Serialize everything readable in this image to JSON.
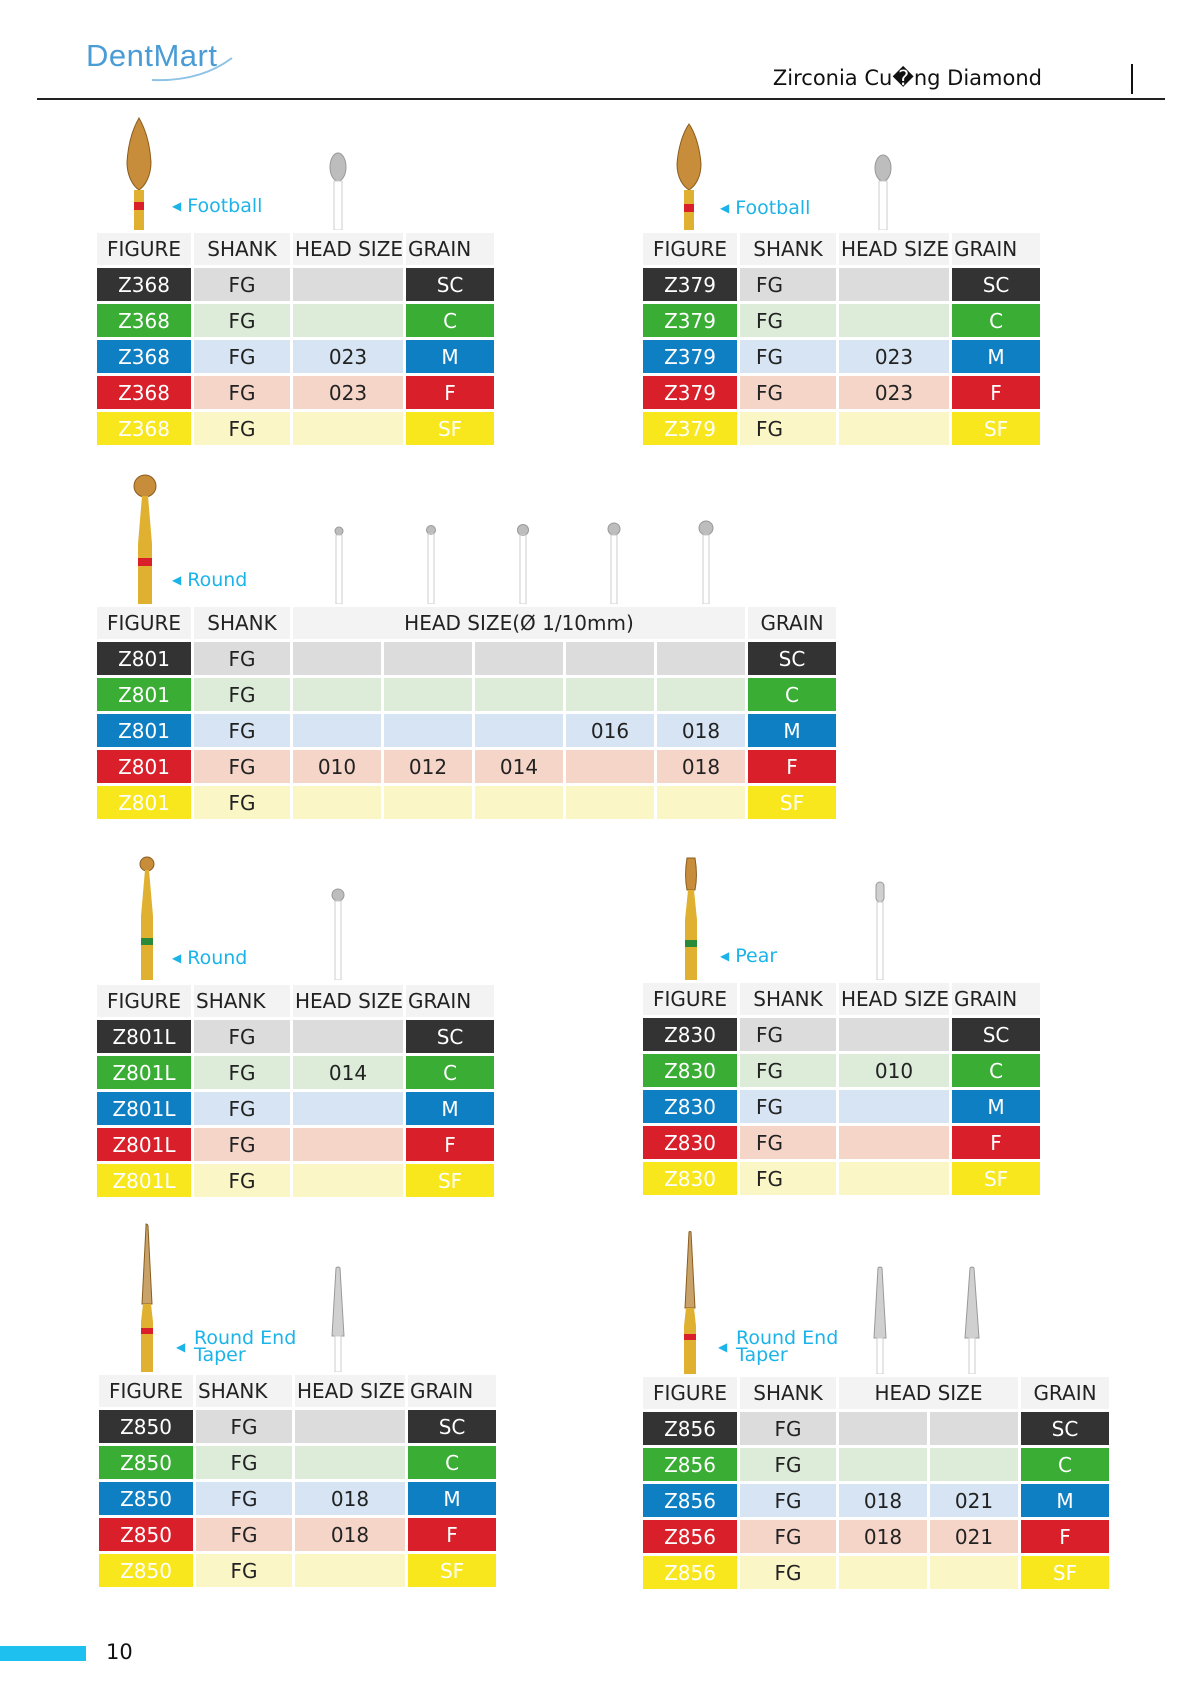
{
  "header": {
    "logo": "DentMart",
    "title": "Zirconia Cu�ng Diamond"
  },
  "footer": {
    "page_number": "10"
  },
  "grain_colors": {
    "SC": "#333333",
    "C": "#3aad35",
    "M": "#0f7fc4",
    "F": "#d81f2a",
    "SF": "#f8e71c"
  },
  "sections": [
    {
      "shape": "Football",
      "head": {
        "figure": "FIGURE",
        "shank": "SHANK",
        "head_size": "HEAD SIZE",
        "grain": "GRAIN"
      },
      "rows": [
        {
          "code": "Z368",
          "shank": "FG",
          "sizes": [
            ""
          ],
          "grain": "SC"
        },
        {
          "code": "Z368",
          "shank": "FG",
          "sizes": [
            ""
          ],
          "grain": "C"
        },
        {
          "code": "Z368",
          "shank": "FG",
          "sizes": [
            "023"
          ],
          "grain": "M"
        },
        {
          "code": "Z368",
          "shank": "FG",
          "sizes": [
            "023"
          ],
          "grain": "F"
        },
        {
          "code": "Z368",
          "shank": "FG",
          "sizes": [
            ""
          ],
          "grain": "SF"
        }
      ]
    },
    {
      "shape": "Football",
      "head": {
        "figure": "FIGURE",
        "shank": "SHANK",
        "head_size": "HEAD SIZE",
        "grain": "GRAIN"
      },
      "rows": [
        {
          "code": "Z379",
          "shank": "FG",
          "sizes": [
            ""
          ],
          "grain": "SC"
        },
        {
          "code": "Z379",
          "shank": "FG",
          "sizes": [
            ""
          ],
          "grain": "C"
        },
        {
          "code": "Z379",
          "shank": "FG",
          "sizes": [
            "023"
          ],
          "grain": "M"
        },
        {
          "code": "Z379",
          "shank": "FG",
          "sizes": [
            "023"
          ],
          "grain": "F"
        },
        {
          "code": "Z379",
          "shank": "FG",
          "sizes": [
            ""
          ],
          "grain": "SF"
        }
      ]
    },
    {
      "shape": "Round",
      "head": {
        "figure": "FIGURE",
        "shank": "SHANK",
        "head_size": "HEAD SIZE(Ø 1/10mm)",
        "grain": "GRAIN"
      },
      "rows": [
        {
          "code": "Z801",
          "shank": "FG",
          "sizes": [
            "",
            "",
            "",
            "",
            ""
          ],
          "grain": "SC"
        },
        {
          "code": "Z801",
          "shank": "FG",
          "sizes": [
            "",
            "",
            "",
            "",
            ""
          ],
          "grain": "C"
        },
        {
          "code": "Z801",
          "shank": "FG",
          "sizes": [
            "",
            "",
            "",
            "016",
            "018"
          ],
          "grain": "M"
        },
        {
          "code": "Z801",
          "shank": "FG",
          "sizes": [
            "010",
            "012",
            "014",
            "",
            "018"
          ],
          "grain": "F"
        },
        {
          "code": "Z801",
          "shank": "FG",
          "sizes": [
            "",
            "",
            "",
            "",
            ""
          ],
          "grain": "SF"
        }
      ]
    },
    {
      "shape": "Round",
      "head": {
        "figure": "FIGURE",
        "shank": "SHANK",
        "head_size": "HEAD SIZE",
        "grain": "GRAIN"
      },
      "rows": [
        {
          "code": "Z801L",
          "shank": "FG",
          "sizes": [
            ""
          ],
          "grain": "SC"
        },
        {
          "code": "Z801L",
          "shank": "FG",
          "sizes": [
            "014"
          ],
          "grain": "C"
        },
        {
          "code": "Z801L",
          "shank": "FG",
          "sizes": [
            ""
          ],
          "grain": "M"
        },
        {
          "code": "Z801L",
          "shank": "FG",
          "sizes": [
            ""
          ],
          "grain": "F"
        },
        {
          "code": "Z801L",
          "shank": "FG",
          "sizes": [
            ""
          ],
          "grain": "SF"
        }
      ]
    },
    {
      "shape": "Pear",
      "head": {
        "figure": "FIGURE",
        "shank": "SHANK",
        "head_size": "HEAD SIZE",
        "grain": "GRAIN"
      },
      "rows": [
        {
          "code": "Z830",
          "shank": "FG",
          "sizes": [
            ""
          ],
          "grain": "SC"
        },
        {
          "code": "Z830",
          "shank": "FG",
          "sizes": [
            "010"
          ],
          "grain": "C"
        },
        {
          "code": "Z830",
          "shank": "FG",
          "sizes": [
            ""
          ],
          "grain": "M"
        },
        {
          "code": "Z830",
          "shank": "FG",
          "sizes": [
            ""
          ],
          "grain": "F"
        },
        {
          "code": "Z830",
          "shank": "FG",
          "sizes": [
            ""
          ],
          "grain": "SF"
        }
      ]
    },
    {
      "shape": "Round End Taper",
      "shape_lines": [
        "Round End",
        "Taper"
      ],
      "head": {
        "figure": "FIGURE",
        "shank": "SHANK",
        "head_size": "HEAD SIZE",
        "grain": "GRAIN"
      },
      "rows": [
        {
          "code": "Z850",
          "shank": "FG",
          "sizes": [
            ""
          ],
          "grain": "SC"
        },
        {
          "code": "Z850",
          "shank": "FG",
          "sizes": [
            ""
          ],
          "grain": "C"
        },
        {
          "code": "Z850",
          "shank": "FG",
          "sizes": [
            "018"
          ],
          "grain": "M"
        },
        {
          "code": "Z850",
          "shank": "FG",
          "sizes": [
            "018"
          ],
          "grain": "F"
        },
        {
          "code": "Z850",
          "shank": "FG",
          "sizes": [
            ""
          ],
          "grain": "SF"
        }
      ]
    },
    {
      "shape": "Round End Taper",
      "shape_lines": [
        "Round End",
        "Taper"
      ],
      "head": {
        "figure": "FIGURE",
        "shank": "SHANK",
        "head_size": "HEAD SIZE",
        "grain": "GRAIN"
      },
      "rows": [
        {
          "code": "Z856",
          "shank": "FG",
          "sizes": [
            "",
            ""
          ],
          "grain": "SC"
        },
        {
          "code": "Z856",
          "shank": "FG",
          "sizes": [
            "",
            ""
          ],
          "grain": "C"
        },
        {
          "code": "Z856",
          "shank": "FG",
          "sizes": [
            "018",
            "021"
          ],
          "grain": "M"
        },
        {
          "code": "Z856",
          "shank": "FG",
          "sizes": [
            "018",
            "021"
          ],
          "grain": "F"
        },
        {
          "code": "Z856",
          "shank": "FG",
          "sizes": [
            "",
            ""
          ],
          "grain": "SF"
        }
      ]
    }
  ]
}
